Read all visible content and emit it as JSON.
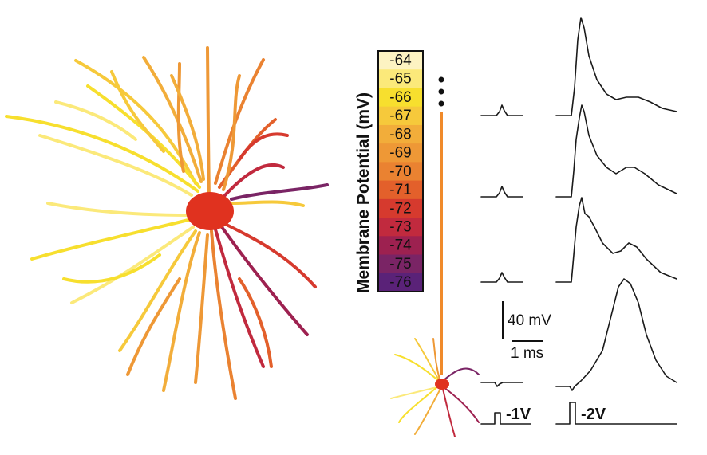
{
  "colorbar": {
    "title": "Membrane Potential (mV)",
    "levels": [
      "-64",
      "-65",
      "-66",
      "-67",
      "-68",
      "-69",
      "-70",
      "-71",
      "-72",
      "-73",
      "-74",
      "-75",
      "-76"
    ],
    "colors": [
      "#fdf3c2",
      "#fbe97a",
      "#f7df2e",
      "#f6c93b",
      "#f2ad3a",
      "#ee9836",
      "#ea8231",
      "#e3602b",
      "#d63a2e",
      "#c12a3e",
      "#9d2150",
      "#7a2465",
      "#5a2278"
    ]
  },
  "scale_bar": {
    "voltage": "40 mV",
    "time": "1 ms"
  },
  "stimuli": [
    {
      "label": "-1V"
    },
    {
      "label": "-2V"
    }
  ],
  "colors": {
    "trace": "#1a1a1a",
    "axon": "#f08a2a",
    "soma": "#e0321f"
  }
}
